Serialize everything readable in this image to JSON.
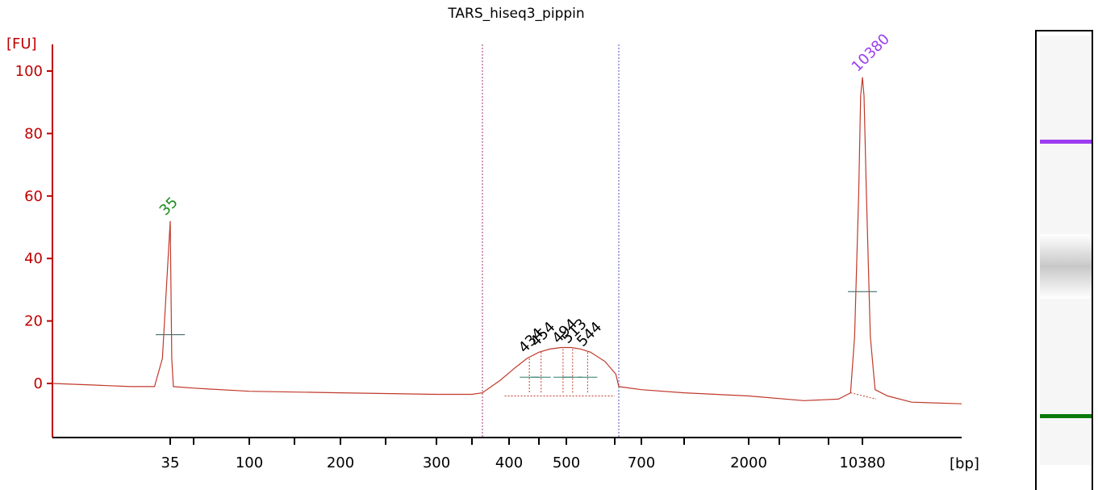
{
  "chart_data": {
    "type": "line",
    "title": "TARS_hiseq3_pippin",
    "ylabel": "[FU]",
    "xlabel": "[bp]",
    "ylim": [
      -17,
      108
    ],
    "yticks": [
      0,
      20,
      40,
      60,
      80,
      100
    ],
    "xticks": [
      {
        "label": "35",
        "value": 35
      },
      {
        "label": "",
        "value": 50
      },
      {
        "label": "100",
        "value": 100
      },
      {
        "label": "",
        "value": 150
      },
      {
        "label": "200",
        "value": 200
      },
      {
        "label": "",
        "value": 250
      },
      {
        "label": "300",
        "value": 300
      },
      {
        "label": "",
        "value": 350
      },
      {
        "label": "400",
        "value": 400
      },
      {
        "label": "",
        "value": 450
      },
      {
        "label": "500",
        "value": 500
      },
      {
        "label": "",
        "value": 600
      },
      {
        "label": "700",
        "value": 700
      },
      {
        "label": "",
        "value": 1000
      },
      {
        "label": "2000",
        "value": 2000
      },
      {
        "label": "",
        "value": 3000
      },
      {
        "label": "",
        "value": 7000
      },
      {
        "label": "10380",
        "value": 10380
      }
    ],
    "region_bounds_bp": [
      370,
      640
    ],
    "peaks": [
      {
        "label": "35",
        "value": 35,
        "height": 52,
        "color": "#1a8a1a"
      },
      {
        "label": "434",
        "value": 434,
        "height": 8,
        "color": "#000000"
      },
      {
        "label": "454",
        "value": 454,
        "height": 10,
        "color": "#000000"
      },
      {
        "label": "494",
        "value": 494,
        "height": 11,
        "color": "#000000"
      },
      {
        "label": "513",
        "value": 513,
        "height": 11,
        "color": "#000000"
      },
      {
        "label": "544",
        "value": 544,
        "height": 10,
        "color": "#000000"
      },
      {
        "label": "10380",
        "value": 10380,
        "height": 98,
        "color": "#9b3cf0"
      }
    ],
    "series": [
      {
        "color": "#c0392b",
        "points": [
          [
            20,
            0
          ],
          [
            25,
            -0.5
          ],
          [
            30,
            -1
          ],
          [
            33,
            -1
          ],
          [
            34,
            8
          ],
          [
            35,
            52
          ],
          [
            36,
            8
          ],
          [
            37,
            -1
          ],
          [
            50,
            -1.5
          ],
          [
            100,
            -2.5
          ],
          [
            200,
            -3
          ],
          [
            300,
            -3.5
          ],
          [
            350,
            -3.5
          ],
          [
            370,
            -3
          ],
          [
            390,
            1
          ],
          [
            410,
            5
          ],
          [
            430,
            8
          ],
          [
            450,
            10
          ],
          [
            470,
            11
          ],
          [
            490,
            11.5
          ],
          [
            510,
            11.5
          ],
          [
            530,
            11
          ],
          [
            550,
            10
          ],
          [
            580,
            7
          ],
          [
            610,
            3
          ],
          [
            640,
            -1
          ],
          [
            700,
            -2
          ],
          [
            1000,
            -3
          ],
          [
            2000,
            -4
          ],
          [
            5000,
            -5.5
          ],
          [
            8000,
            -5
          ],
          [
            9200,
            -3
          ],
          [
            9600,
            15
          ],
          [
            10000,
            60
          ],
          [
            10200,
            92
          ],
          [
            10380,
            98
          ],
          [
            10550,
            92
          ],
          [
            10800,
            60
          ],
          [
            11200,
            15
          ],
          [
            11700,
            -2
          ],
          [
            13000,
            -4
          ],
          [
            15500,
            -6
          ],
          [
            20000,
            -6.5
          ]
        ]
      }
    ],
    "colors": {
      "axis": "#c00000",
      "trace": "#c0392b",
      "upper_marker": "#9b3cf0",
      "lower_marker": "#1a8a1a"
    }
  }
}
